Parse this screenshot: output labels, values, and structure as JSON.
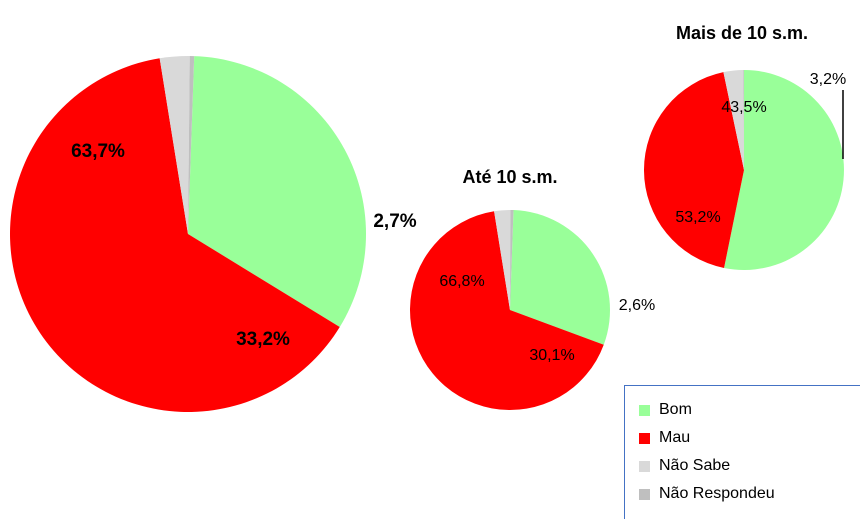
{
  "chart_data": [
    {
      "type": "pie",
      "title": "",
      "categories": [
        "Bom",
        "Mau",
        "Não Sabe",
        "Não Respondeu"
      ],
      "values": [
        33.2,
        63.7,
        2.7,
        0.4
      ],
      "labels": [
        "33,2%",
        "63,7%",
        "2,7%",
        ""
      ]
    },
    {
      "type": "pie",
      "title": "Até 10 s.m.",
      "categories": [
        "Bom",
        "Mau",
        "Não Sabe",
        "Não Respondeu"
      ],
      "values": [
        30.1,
        66.8,
        2.6,
        0.5
      ],
      "labels": [
        "30,1%",
        "66,8%",
        "2,6%",
        ""
      ]
    },
    {
      "type": "pie",
      "title": "Mais de 10 s.m.",
      "categories": [
        "Bom",
        "Mau",
        "Não Sabe",
        "Não Respondeu"
      ],
      "values": [
        53.2,
        43.5,
        3.2,
        0.1
      ],
      "labels": [
        "53,2%",
        "43,5%",
        "3,2%",
        ""
      ]
    }
  ],
  "legend": {
    "items": [
      {
        "label": "Bom",
        "color": "#99ff99"
      },
      {
        "label": "Mau",
        "color": "#ff0000"
      },
      {
        "label": "Não Sabe",
        "color": "#d9d9d9"
      },
      {
        "label": "Não Respondeu",
        "color": "#bfbfbf"
      }
    ]
  },
  "colors": {
    "Bom": "#99ff99",
    "Mau": "#ff0000",
    "Não Sabe": "#d9d9d9",
    "Não Respondeu": "#bfbfbf"
  }
}
